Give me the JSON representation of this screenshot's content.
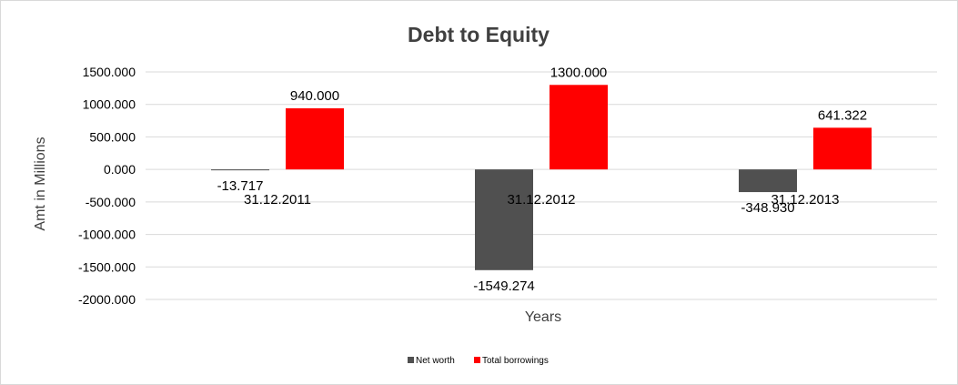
{
  "chart_data": {
    "type": "bar",
    "title": "Debt to Equity",
    "xlabel": "Years",
    "ylabel": "Amt in Millions",
    "categories": [
      "31.12.2011",
      "31.12.2012",
      "31.12.2013"
    ],
    "series": [
      {
        "name": "Net worth",
        "values": [
          -13.717,
          -1549.274,
          -348.93
        ],
        "labels": [
          "-13.717",
          "-1549.274",
          "-348.930"
        ],
        "color": "#505050"
      },
      {
        "name": "Total borrowings",
        "values": [
          940.0,
          1300.0,
          641.322
        ],
        "labels": [
          "940.000",
          "1300.000",
          "641.322"
        ],
        "color": "#ff0000"
      }
    ],
    "ylim": [
      -2000,
      1500
    ],
    "yticks": [
      1500,
      1000,
      500,
      0,
      -500,
      -1000,
      -1500,
      -2000
    ],
    "ytick_labels": [
      "1500.000",
      "1000.000",
      "500.000",
      "0.000",
      "-500.000",
      "-1000.000",
      "-1500.000",
      "-2000.000"
    ],
    "grid": true,
    "legend_position": "bottom"
  }
}
